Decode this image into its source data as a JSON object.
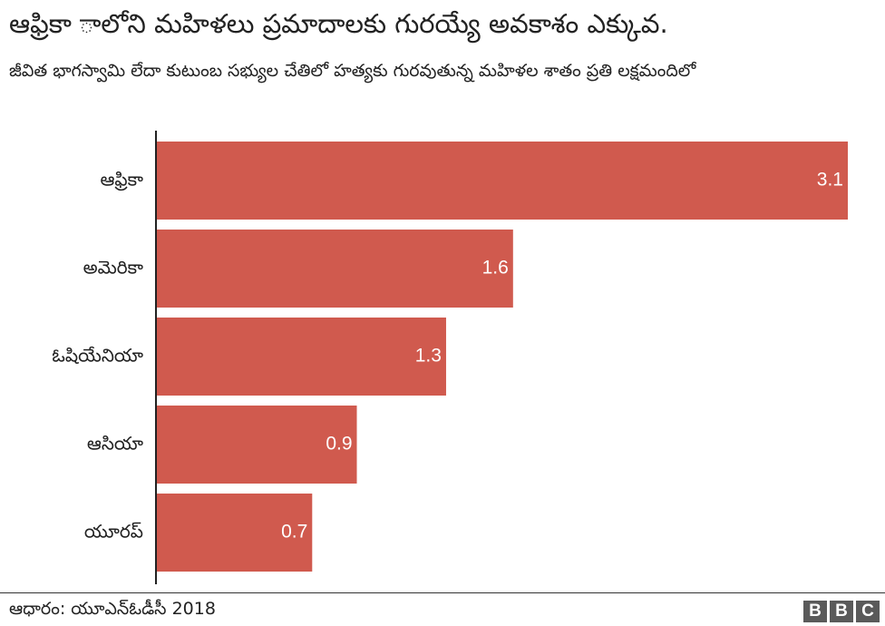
{
  "header": {
    "title": "ఆఫ్రికా ాలోని మహిళలు ప్రమాదాలకు గురయ్యే అవకాశం ఎక్కువ.",
    "subtitle": "జీవిత భాగస్వామి లేదా కుటుంబ సభ్యుల చేతిలో హత్యకు గురవుతున్న మహిళల శాతం ప్రతి లక్షమందిలో"
  },
  "chart_data": {
    "type": "bar",
    "orientation": "horizontal",
    "categories": [
      "ఆఫ్రికా",
      "అమెరికా",
      "ఓషియేనియా",
      "ఆసియా",
      "యూరప్"
    ],
    "values": [
      3.1,
      1.6,
      1.3,
      0.9,
      0.7
    ],
    "data_labels": [
      "3.1",
      "1.6",
      "1.3",
      "0.9",
      "0.7"
    ],
    "xlim": [
      0,
      3.1
    ],
    "grid": false,
    "bar_color": "#d05a4e",
    "label_color": "#ffffff"
  },
  "footer": {
    "source": "ఆధారం: యూఎన్ఓడీసీ 2018",
    "logo_letters": [
      "B",
      "B",
      "C"
    ]
  }
}
